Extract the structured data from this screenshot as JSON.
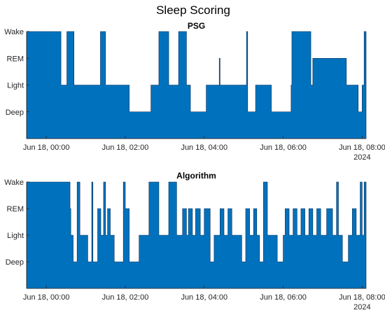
{
  "figure_title": "Sleep Scoring",
  "chart_data": [
    {
      "type": "area",
      "title": "PSG",
      "xlabel": "",
      "ylabel": "",
      "ytick_labels": [
        "Wake",
        "REM",
        "Light",
        "Deep"
      ],
      "yvalues": [
        4,
        3,
        2,
        1
      ],
      "ylim": [
        0,
        4
      ],
      "xlim": [
        -0.5,
        8.1
      ],
      "xtick_values": [
        0,
        2,
        4,
        6,
        8
      ],
      "xtick_labels": [
        "Jun 18, 00:00",
        "Jun 18, 02:00",
        "Jun 18, 04:00",
        "Jun 18, 06:00",
        "Jun 18, 08:00"
      ],
      "x_secondary_label": "2024",
      "x_units": "hours after Jun 18, 00:00",
      "color": "#0072BD",
      "grid": false,
      "series": [
        {
          "x": [
            -0.5,
            0.37,
            0.52,
            0.7,
            1.37,
            1.5,
            2.1,
            2.65,
            2.85,
            3.1,
            3.35,
            3.55,
            3.65,
            4.05,
            4.38,
            4.4,
            5.07,
            5.1,
            5.3,
            5.7,
            6.2,
            6.22,
            6.7,
            6.75,
            7.0,
            7.6,
            7.9,
            8.0,
            8.05,
            8.1
          ],
          "stage": [
            4,
            2,
            4,
            2,
            4,
            2,
            1,
            2,
            4,
            2,
            4,
            2,
            1,
            2,
            3,
            2,
            4,
            1,
            2,
            1,
            2,
            4,
            2,
            3,
            3,
            2,
            1,
            2,
            4,
            4
          ]
        }
      ]
    },
    {
      "type": "area",
      "title": "Algorithm",
      "xlabel": "",
      "ylabel": "",
      "ytick_labels": [
        "Wake",
        "REM",
        "Light",
        "Deep"
      ],
      "yvalues": [
        4,
        3,
        2,
        1
      ],
      "ylim": [
        0,
        4
      ],
      "xlim": [
        -0.5,
        8.1
      ],
      "xtick_values": [
        0,
        2,
        4,
        6,
        8
      ],
      "xtick_labels": [
        "Jun 18, 00:00",
        "Jun 18, 02:00",
        "Jun 18, 04:00",
        "Jun 18, 06:00",
        "Jun 18, 08:00"
      ],
      "x_secondary_label": "2024",
      "x_units": "hours after Jun 18, 00:00",
      "color": "#0072BD",
      "grid": false,
      "series": [
        {
          "x": [
            -0.5,
            0.6,
            0.62,
            0.68,
            0.78,
            0.85,
            1.05,
            1.15,
            1.18,
            1.3,
            1.38,
            1.45,
            1.5,
            1.55,
            1.62,
            1.72,
            1.95,
            2.0,
            2.1,
            2.35,
            2.6,
            2.85,
            3.1,
            3.3,
            3.45,
            3.55,
            3.6,
            3.7,
            3.78,
            3.9,
            4.0,
            4.15,
            4.25,
            4.4,
            4.5,
            4.6,
            4.7,
            4.95,
            5.05,
            5.15,
            5.25,
            5.33,
            5.4,
            5.5,
            5.6,
            5.85,
            6.0,
            6.05,
            6.15,
            6.25,
            6.35,
            6.45,
            6.55,
            6.65,
            6.75,
            6.85,
            6.95,
            7.1,
            7.25,
            7.35,
            7.4,
            7.5,
            7.65,
            7.75,
            7.85,
            7.95,
            8.0,
            8.05,
            8.1
          ],
          "stage": [
            4,
            3,
            2,
            1,
            4,
            2,
            1,
            4,
            1,
            3,
            2,
            4,
            2,
            3,
            2,
            1,
            4,
            3,
            1,
            2,
            4,
            2,
            4,
            2,
            3,
            2,
            3,
            2,
            3,
            2,
            3,
            1,
            2,
            3,
            2,
            3,
            2,
            1,
            3,
            2,
            3,
            2,
            1,
            4,
            2,
            1,
            2,
            3,
            2,
            3,
            2,
            3,
            2,
            3,
            2,
            3,
            2,
            3,
            2,
            4,
            2,
            1,
            2,
            3,
            2,
            4,
            2,
            4,
            4
          ]
        }
      ]
    }
  ]
}
